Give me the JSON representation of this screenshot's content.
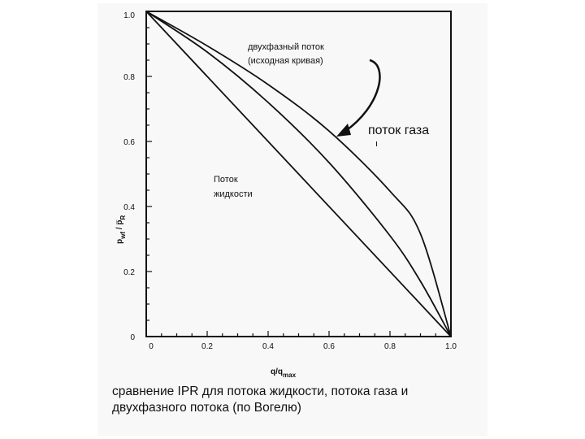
{
  "chart_data": {
    "type": "line",
    "xlabel": "q/q",
    "xlabel_sub": "max",
    "ylabel": "p",
    "ylabel_sub": "wf",
    "ylabel_mid": " / ",
    "ylabel_end": "p̅",
    "ylabel_end_sub": "R",
    "xlim": [
      0,
      1.0
    ],
    "ylim": [
      0,
      1.0
    ],
    "x_ticks": [
      0,
      0.2,
      0.4,
      0.6,
      0.8,
      1.0
    ],
    "x_tick_labels": [
      "0",
      "0.2",
      "0.4",
      "0.6",
      "0.8",
      "1.0"
    ],
    "y_ticks": [
      0,
      0.2,
      0.4,
      0.6,
      0.8,
      1.0
    ],
    "y_tick_labels": [
      "0",
      "0.2",
      "0.4",
      "0.6",
      "0.8",
      "1.0"
    ],
    "grid": false,
    "series": [
      {
        "key": "liquid",
        "x": [
          0,
          1.0
        ],
        "y": [
          1.0,
          0
        ]
      },
      {
        "key": "two_phase",
        "x": [
          0,
          0.2,
          0.4,
          0.6,
          0.8,
          0.9,
          1.0
        ],
        "y": [
          1.0,
          0.875,
          0.72,
          0.535,
          0.31,
          0.17,
          0
        ]
      },
      {
        "key": "gas",
        "x": [
          0,
          0.2,
          0.4,
          0.6,
          0.8,
          0.9,
          1.0
        ],
        "y": [
          1.0,
          0.894,
          0.775,
          0.632,
          0.447,
          0.316,
          0
        ]
      }
    ],
    "annotations": [
      {
        "key": "two_phase_label",
        "lines": [
          "двухфазный поток",
          "(исходная кривая)"
        ]
      },
      {
        "key": "gas_label",
        "lines": [
          "поток газа"
        ]
      },
      {
        "key": "liquid_label",
        "lines": [
          "Поток",
          "жидкости"
        ]
      }
    ]
  },
  "caption": {
    "line1": "сравнение IPR для потока жидкости, потока газа и",
    "line2": "двухфазного потока (по Вогелю)"
  },
  "colors": {
    "ink": "#111111",
    "paper": "#f8f8f8"
  }
}
